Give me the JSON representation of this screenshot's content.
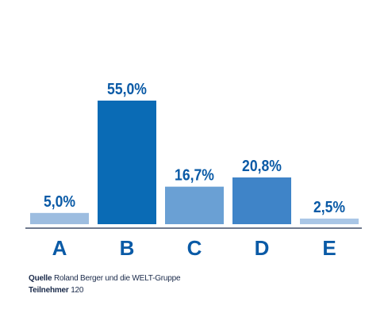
{
  "chart_data": {
    "type": "bar",
    "categories": [
      "A",
      "B",
      "C",
      "D",
      "E"
    ],
    "values": [
      5.0,
      55.0,
      16.7,
      20.8,
      2.5
    ],
    "value_labels": [
      "5,0%",
      "55,0%",
      "16,7%",
      "20,8%",
      "2,5%"
    ],
    "bar_colors": [
      "#9dbde0",
      "#0a6bb5",
      "#6aa0d4",
      "#3f84c8",
      "#a9c6e6"
    ],
    "ylim": [
      0,
      55
    ],
    "grid": false,
    "legend": "none"
  },
  "colors": {
    "label_text": "#0a5aa6",
    "baseline": "#1a2a4a"
  },
  "footer": {
    "source_label": "Quelle",
    "source_text": " Roland Berger und die WELT-Gruppe",
    "participants_label": "Teilnehmer",
    "participants_text": " 120"
  }
}
